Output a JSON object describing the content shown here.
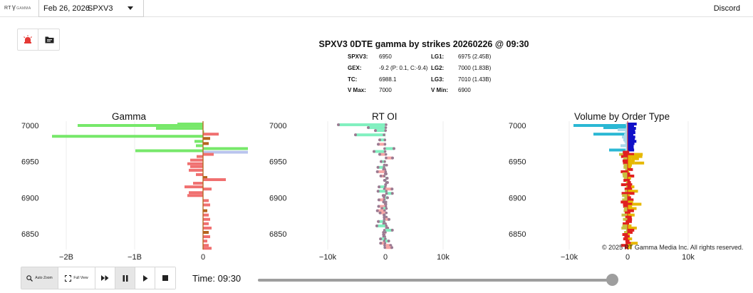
{
  "topbar": {
    "logo_rt": "RT",
    "logo_gamma": "GAMMA",
    "date": "Feb 26, 2026",
    "ticker": "SPXV3",
    "discord": "Discord"
  },
  "tools": [
    {
      "icon": "alarm-icon",
      "color": "#e53935"
    },
    {
      "icon": "folder-icon",
      "color": "#222222"
    }
  ],
  "header": {
    "title": "SPXV3 0DTE gamma by strikes 20260226 @ 09:30",
    "left": [
      {
        "key": "SPXV3:",
        "value": "6950"
      },
      {
        "key": "GEX:",
        "value": "-9.2 (P: 0.1, C:-9.4)"
      },
      {
        "key": "TC:",
        "value": "6988.1"
      },
      {
        "key": "V Max:",
        "value": "7000"
      }
    ],
    "right": [
      {
        "key": "LG1:",
        "value": "6975 (2.45B)"
      },
      {
        "key": "LG2:",
        "value": "7000 (1.83B)"
      },
      {
        "key": "LG3:",
        "value": "7010 (1.43B)"
      },
      {
        "key": "V Min:",
        "value": "6900"
      }
    ]
  },
  "colors": {
    "call_green": "#77e86a",
    "put_red": "#f07070",
    "brown": "#b5651d",
    "lavender": "#b9c4ee",
    "oi_green": "#82f0c0",
    "oi_red": "#f6a6a6",
    "dot": "#9b7a92",
    "vol_cyan": "#2bb8d4",
    "vol_lightblue": "#a8d8ea",
    "vol_navy": "#1010c8",
    "vol_yellow": "#e6b800",
    "vol_red": "#e02020",
    "vol_olive": "#c8c040"
  },
  "charts": [
    {
      "title": "Gamma",
      "x_ticks": [
        "−2B",
        "−1B",
        "0"
      ],
      "y_ticks": [
        "7000",
        "6950",
        "6900",
        "6850"
      ]
    },
    {
      "title": "RT OI",
      "x_ticks": [
        "−10k",
        "0",
        "10k"
      ],
      "y_ticks": [
        "7000",
        "6950",
        "6900",
        "6850"
      ]
    },
    {
      "title": "Volume by Order Type",
      "x_ticks": [
        "−10k",
        "0",
        "10k"
      ],
      "y_ticks": [
        "7000",
        "6950",
        "6900",
        "6850"
      ]
    }
  ],
  "copyright": "© 2025 RT Gamma Media Inc. All rights reserved.",
  "playback": {
    "auto_zoom": "Auto Zoom",
    "full_view": "Full View",
    "time_label": "Time: 09:30",
    "progress": 0.985
  }
}
